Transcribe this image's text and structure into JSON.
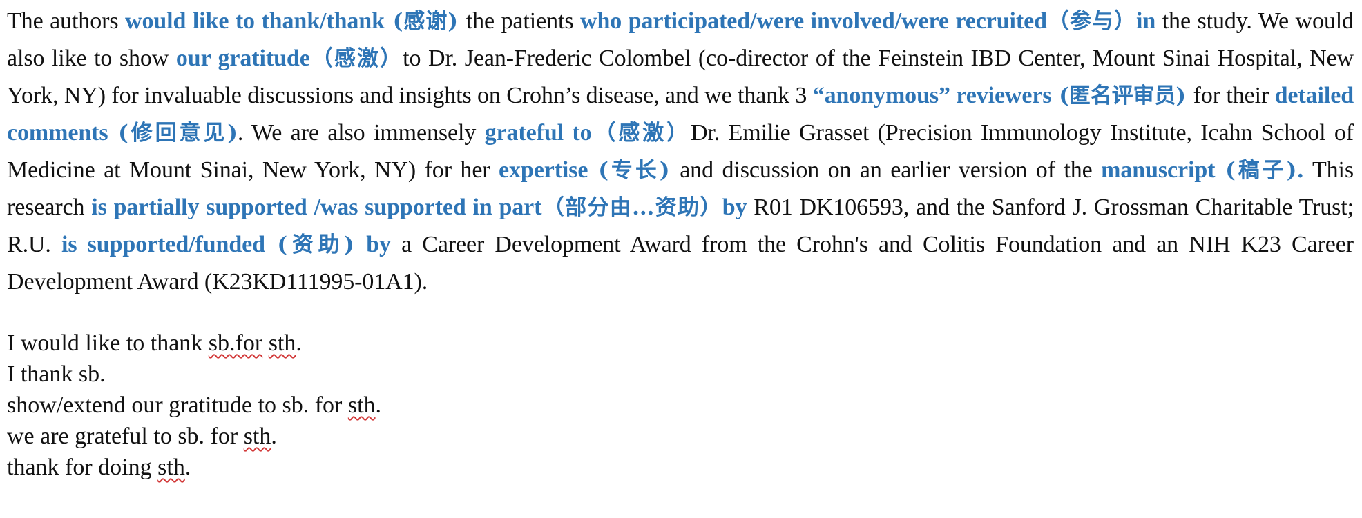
{
  "paragraph": {
    "s01": "The authors ",
    "h01": "would like to thank/thank",
    "c01": " (感谢) ",
    "s02": "the patients ",
    "h02": "who participated/were involved/were recruited",
    "c02": "（参与）",
    "h03": "in",
    "s03": " the study. We would also like to show ",
    "h04": "our gratitude",
    "c04": "（感激）",
    "s04": "to Dr. Jean-Frederic Colombel (co-director of the Feinstein IBD Center, Mount Sinai Hospital, New York, NY) for invaluable discussions and insights on Crohn’s disease, and we thank 3 ",
    "h05": "“anonymous” reviewers",
    "c05": " (匿名评审员) ",
    "s05": "for their ",
    "h06": "detailed comments",
    "c06": " (修回意见)",
    "s06": ". We are also immensely ",
    "h07": "grateful to",
    "c07": "（感激）",
    "s07": "Dr. Emilie Grasset (Precision Immunology Institute, Icahn School of Medicine at Mount Sinai, New York, NY) for her ",
    "h08": "expertise",
    "c08": " (专长) ",
    "s08": "and discussion on an earlier version of the ",
    "h09": "manuscript",
    "c09": " (稿子).",
    "s09": " This research ",
    "h10": "is partially supported /was supported in part",
    "c10": "（部分由...资助）",
    "h11": "by",
    "s11": " R01 DK106593, and the Sanford J. Grossman Charitable Trust; R.U. ",
    "h12": "is supported/funded",
    "c12": " (资助) ",
    "h13": "by",
    "s13": " a Career Development Award from the Crohn's and Colitis Foundation and an NIH K23 Career Development Award (K23KD111995-01A1)."
  },
  "phrases": {
    "p1_a": "I would like to thank ",
    "p1_b": "sb.for",
    "p1_c": " ",
    "p1_d": "sth",
    "p1_e": ".",
    "p2": "I thank sb.",
    "p3_a": "show/extend our gratitude to sb. for ",
    "p3_b": "sth",
    "p3_c": ".",
    "p4_a": "we are grateful to sb. for ",
    "p4_b": "sth",
    "p4_c": ".",
    "p5_a": "thank for doing ",
    "p5_b": "sth",
    "p5_c": "."
  },
  "colors": {
    "highlight": "#2E75B6",
    "text": "#111111",
    "spellcheck": "#d23a3a"
  }
}
